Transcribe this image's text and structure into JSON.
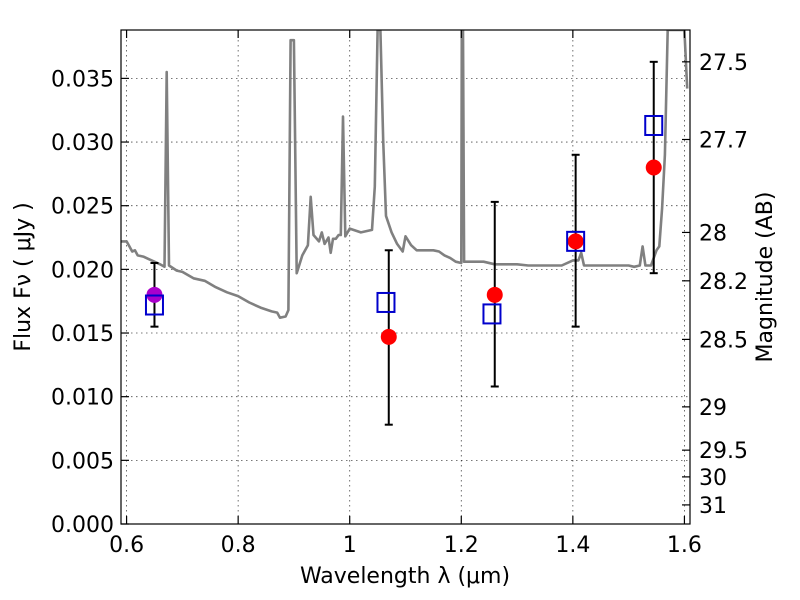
{
  "chart_data": {
    "type": "scatter",
    "title": "",
    "xlabel": "Wavelength  λ (μm)",
    "ylabel": "Flux  Fν  ( μJy )",
    "ylabel_right": "Magnitude (AB)",
    "xlim": [
      0.59,
      1.61
    ],
    "ylim": [
      0.0,
      0.0388
    ],
    "x_ticks": [
      {
        "v": 0.6,
        "label": "0.6"
      },
      {
        "v": 0.8,
        "label": "0.8"
      },
      {
        "v": 1.0,
        "label": "1"
      },
      {
        "v": 1.2,
        "label": "1.2"
      },
      {
        "v": 1.4,
        "label": "1.4"
      },
      {
        "v": 1.6,
        "label": "1.6"
      }
    ],
    "y_ticks": [
      {
        "v": 0.0,
        "label": "0.000"
      },
      {
        "v": 0.005,
        "label": "0.005"
      },
      {
        "v": 0.01,
        "label": "0.010"
      },
      {
        "v": 0.015,
        "label": "0.015"
      },
      {
        "v": 0.02,
        "label": "0.020"
      },
      {
        "v": 0.025,
        "label": "0.025"
      },
      {
        "v": 0.03,
        "label": "0.030"
      },
      {
        "v": 0.035,
        "label": "0.035"
      }
    ],
    "right_ticks": [
      {
        "flux": 0.0363,
        "label": "27.5"
      },
      {
        "flux": 0.0302,
        "label": "27.7"
      },
      {
        "flux": 0.0229,
        "label": "28"
      },
      {
        "flux": 0.0191,
        "label": "28.2"
      },
      {
        "flux": 0.0145,
        "label": "28.5"
      },
      {
        "flux": 0.0092,
        "label": "29"
      },
      {
        "flux": 0.0058,
        "label": "29.5"
      },
      {
        "flux": 0.0037,
        "label": "30"
      },
      {
        "flux": 0.0015,
        "label": "31"
      }
    ],
    "grid": true,
    "series": [
      {
        "type": "line",
        "color": "#808080",
        "points": [
          [
            0.59,
            0.0222
          ],
          [
            0.6,
            0.0222
          ],
          [
            0.605,
            0.0218
          ],
          [
            0.61,
            0.0214
          ],
          [
            0.615,
            0.0215
          ],
          [
            0.62,
            0.0211
          ],
          [
            0.63,
            0.021
          ],
          [
            0.64,
            0.0208
          ],
          [
            0.65,
            0.0206
          ],
          [
            0.66,
            0.0204
          ],
          [
            0.668,
            0.0202
          ],
          [
            0.672,
            0.0355
          ],
          [
            0.676,
            0.0203
          ],
          [
            0.69,
            0.0199
          ],
          [
            0.7,
            0.0198
          ],
          [
            0.72,
            0.0193
          ],
          [
            0.74,
            0.0191
          ],
          [
            0.76,
            0.0186
          ],
          [
            0.78,
            0.0182
          ],
          [
            0.8,
            0.0179
          ],
          [
            0.82,
            0.0174
          ],
          [
            0.84,
            0.017
          ],
          [
            0.86,
            0.0167
          ],
          [
            0.87,
            0.0166
          ],
          [
            0.875,
            0.0162
          ],
          [
            0.885,
            0.0163
          ],
          [
            0.89,
            0.0168
          ],
          [
            0.894,
            0.038
          ],
          [
            0.9,
            0.038
          ],
          [
            0.905,
            0.0197
          ],
          [
            0.915,
            0.0211
          ],
          [
            0.925,
            0.0219
          ],
          [
            0.93,
            0.0257
          ],
          [
            0.935,
            0.0227
          ],
          [
            0.945,
            0.0222
          ],
          [
            0.95,
            0.0229
          ],
          [
            0.955,
            0.022
          ],
          [
            0.962,
            0.0225
          ],
          [
            0.966,
            0.0213
          ],
          [
            0.97,
            0.0224
          ],
          [
            0.975,
            0.0224
          ],
          [
            0.98,
            0.0227
          ],
          [
            0.984,
            0.0227
          ],
          [
            0.988,
            0.032
          ],
          [
            0.992,
            0.0226
          ],
          [
            1.0,
            0.0232
          ],
          [
            1.02,
            0.0229
          ],
          [
            1.04,
            0.0231
          ],
          [
            1.045,
            0.0265
          ],
          [
            1.05,
            0.0388
          ],
          [
            1.055,
            0.0388
          ],
          [
            1.06,
            0.0301
          ],
          [
            1.065,
            0.0242
          ],
          [
            1.075,
            0.0229
          ],
          [
            1.085,
            0.022
          ],
          [
            1.095,
            0.0214
          ],
          [
            1.1,
            0.0226
          ],
          [
            1.11,
            0.0219
          ],
          [
            1.12,
            0.0215
          ],
          [
            1.13,
            0.0215
          ],
          [
            1.14,
            0.0215
          ],
          [
            1.15,
            0.0215
          ],
          [
            1.16,
            0.0214
          ],
          [
            1.17,
            0.0211
          ],
          [
            1.18,
            0.0209
          ],
          [
            1.19,
            0.0206
          ],
          [
            1.2,
            0.0205
          ],
          [
            1.201,
            0.0388
          ],
          [
            1.203,
            0.0388
          ],
          [
            1.205,
            0.0206
          ],
          [
            1.22,
            0.0206
          ],
          [
            1.24,
            0.0206
          ],
          [
            1.26,
            0.0204
          ],
          [
            1.28,
            0.0204
          ],
          [
            1.3,
            0.0204
          ],
          [
            1.32,
            0.0203
          ],
          [
            1.34,
            0.0203
          ],
          [
            1.36,
            0.0203
          ],
          [
            1.38,
            0.0203
          ],
          [
            1.4,
            0.0207
          ],
          [
            1.41,
            0.0207
          ],
          [
            1.415,
            0.0213
          ],
          [
            1.42,
            0.0203
          ],
          [
            1.44,
            0.0203
          ],
          [
            1.46,
            0.0203
          ],
          [
            1.48,
            0.0203
          ],
          [
            1.5,
            0.0203
          ],
          [
            1.51,
            0.0202
          ],
          [
            1.52,
            0.0203
          ],
          [
            1.525,
            0.0218
          ],
          [
            1.53,
            0.0203
          ],
          [
            1.54,
            0.0203
          ],
          [
            1.55,
            0.0215
          ],
          [
            1.555,
            0.0218
          ],
          [
            1.56,
            0.0248
          ],
          [
            1.565,
            0.029
          ],
          [
            1.57,
            0.0388
          ],
          [
            1.6,
            0.0388
          ],
          [
            1.605,
            0.0342
          ]
        ]
      },
      {
        "type": "errorbar",
        "color": "#000000",
        "points": [
          {
            "x": 0.65,
            "low": 0.0155,
            "high": 0.0205
          },
          {
            "x": 1.07,
            "low": 0.0078,
            "high": 0.0215
          },
          {
            "x": 1.26,
            "low": 0.0108,
            "high": 0.0253
          },
          {
            "x": 1.405,
            "low": 0.0155,
            "high": 0.029
          },
          {
            "x": 1.545,
            "low": 0.0197,
            "high": 0.0363
          }
        ]
      },
      {
        "type": "filled-circle",
        "color": "#ff0000",
        "points": [
          {
            "x": 1.07,
            "y": 0.0147
          },
          {
            "x": 1.26,
            "y": 0.018
          },
          {
            "x": 1.405,
            "y": 0.0222
          },
          {
            "x": 1.545,
            "y": 0.028
          }
        ]
      },
      {
        "type": "filled-circle",
        "color": "#aa00cc",
        "points": [
          {
            "x": 0.65,
            "y": 0.018
          }
        ]
      },
      {
        "type": "open-square",
        "color": "#0000cc",
        "points": [
          {
            "x": 0.65,
            "y": 0.0172
          },
          {
            "x": 1.065,
            "y": 0.0174
          },
          {
            "x": 1.255,
            "y": 0.0165
          },
          {
            "x": 1.405,
            "y": 0.0222
          },
          {
            "x": 1.545,
            "y": 0.0313
          }
        ]
      }
    ]
  }
}
